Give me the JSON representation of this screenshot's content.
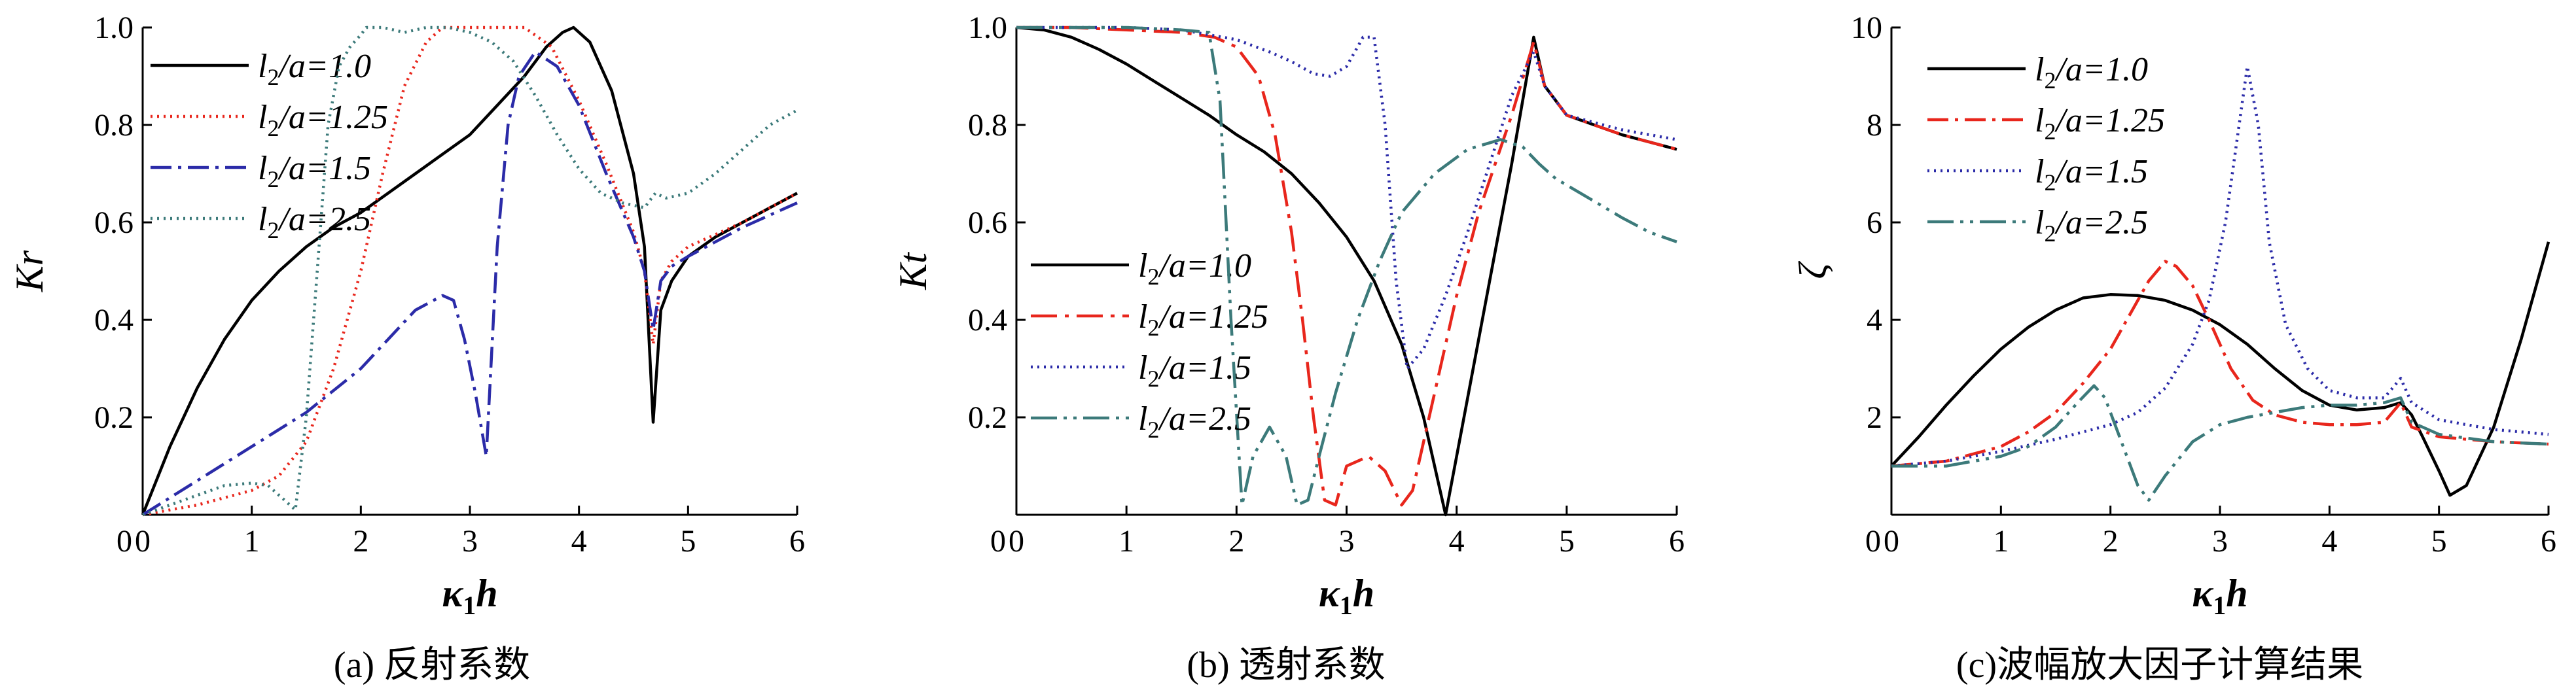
{
  "chart_data": [
    {
      "type": "line",
      "caption": "(a) 反射系数",
      "xlabel": "κ1h",
      "ylabel": "Kr",
      "xlim": [
        0,
        6
      ],
      "ylim": [
        0,
        1.0
      ],
      "xticks": [
        "0",
        "1",
        "2",
        "3",
        "4",
        "5",
        "6"
      ],
      "yticks": [
        "0.2",
        "0.4",
        "0.6",
        "0.8",
        "1.0"
      ],
      "legend": "top-left",
      "grid": false,
      "series": [
        {
          "name": "l2/a=1.0",
          "color": "#000000",
          "dash": "solid",
          "x": [
            0,
            0.25,
            0.5,
            0.75,
            1,
            1.25,
            1.5,
            1.75,
            2,
            2.25,
            2.5,
            2.75,
            3,
            3.25,
            3.5,
            3.7,
            3.85,
            3.95,
            4.1,
            4.3,
            4.5,
            4.6,
            4.68,
            4.75,
            4.85,
            5,
            5.25,
            5.5,
            5.75,
            6
          ],
          "y": [
            0,
            0.14,
            0.26,
            0.36,
            0.44,
            0.5,
            0.55,
            0.59,
            0.62,
            0.66,
            0.7,
            0.74,
            0.78,
            0.84,
            0.9,
            0.96,
            0.99,
            1.0,
            0.97,
            0.87,
            0.7,
            0.55,
            0.19,
            0.42,
            0.48,
            0.53,
            0.57,
            0.6,
            0.63,
            0.66
          ]
        },
        {
          "name": "l2/a=1.25",
          "color": "#e8261c",
          "dash": "3,7",
          "x": [
            0,
            0.5,
            1,
            1.25,
            1.5,
            1.75,
            2,
            2.2,
            2.4,
            2.6,
            2.75,
            3,
            3.25,
            3.5,
            3.75,
            4,
            4.25,
            4.5,
            4.6,
            4.68,
            4.75,
            4.85,
            5,
            5.5,
            6
          ],
          "y": [
            0,
            0.02,
            0.05,
            0.08,
            0.15,
            0.3,
            0.5,
            0.7,
            0.88,
            0.97,
            1.0,
            1.0,
            1.0,
            1.0,
            0.96,
            0.85,
            0.72,
            0.58,
            0.5,
            0.35,
            0.48,
            0.52,
            0.55,
            0.6,
            0.66
          ]
        },
        {
          "name": "l2/a=1.5",
          "color": "#2b2ba8",
          "dash": "32,10,5,10",
          "x": [
            0,
            0.5,
            1,
            1.5,
            2,
            2.25,
            2.5,
            2.75,
            2.85,
            2.95,
            3.05,
            3.15,
            3.25,
            3.35,
            3.45,
            3.6,
            3.8,
            4,
            4.25,
            4.5,
            4.6,
            4.68,
            4.75,
            4.85,
            5,
            5.5,
            6
          ],
          "y": [
            0,
            0.07,
            0.14,
            0.21,
            0.3,
            0.36,
            0.42,
            0.45,
            0.44,
            0.36,
            0.25,
            0.12,
            0.55,
            0.8,
            0.9,
            0.95,
            0.92,
            0.84,
            0.7,
            0.57,
            0.5,
            0.38,
            0.48,
            0.51,
            0.53,
            0.59,
            0.64
          ]
        },
        {
          "name": "l2/a=2.5",
          "color": "#3c7a7a",
          "dash": "3,7",
          "x": [
            0,
            0.25,
            0.5,
            0.75,
            1,
            1.15,
            1.3,
            1.4,
            1.5,
            1.6,
            1.7,
            1.8,
            1.9,
            2,
            2.05,
            2.2,
            2.4,
            2.6,
            2.8,
            3,
            3.2,
            3.4,
            3.6,
            3.8,
            4,
            4.2,
            4.4,
            4.6,
            4.7,
            4.8,
            5,
            5.25,
            5.5,
            5.75,
            6
          ],
          "y": [
            0,
            0.02,
            0.04,
            0.06,
            0.065,
            0.06,
            0.03,
            0.01,
            0.2,
            0.5,
            0.8,
            0.92,
            0.96,
            0.985,
            1.0,
            1.0,
            0.99,
            1.0,
            1.0,
            0.99,
            0.97,
            0.93,
            0.86,
            0.78,
            0.71,
            0.66,
            0.64,
            0.63,
            0.66,
            0.65,
            0.66,
            0.7,
            0.75,
            0.8,
            0.83
          ]
        }
      ]
    },
    {
      "type": "line",
      "caption": "(b) 透射系数",
      "xlabel": "κ1h",
      "ylabel": "Kt",
      "xlim": [
        0,
        6
      ],
      "ylim": [
        0,
        1.0
      ],
      "xticks": [
        "0",
        "1",
        "2",
        "3",
        "4",
        "5",
        "6"
      ],
      "yticks": [
        "0.2",
        "0.4",
        "0.6",
        "0.8",
        "1.0"
      ],
      "legend": "center-left",
      "grid": false,
      "series": [
        {
          "name": "l2/a=1.0",
          "color": "#000000",
          "dash": "solid",
          "x": [
            0,
            0.25,
            0.5,
            0.75,
            1,
            1.25,
            1.5,
            1.75,
            2,
            2.25,
            2.5,
            2.75,
            3,
            3.25,
            3.5,
            3.7,
            3.9,
            4.1,
            4.3,
            4.5,
            4.7,
            4.8,
            5,
            5.25,
            5.5,
            5.75,
            6
          ],
          "y": [
            1.0,
            0.995,
            0.98,
            0.955,
            0.925,
            0.89,
            0.855,
            0.82,
            0.78,
            0.745,
            0.7,
            0.64,
            0.57,
            0.48,
            0.35,
            0.2,
            0.0,
            0.24,
            0.48,
            0.72,
            0.98,
            0.88,
            0.82,
            0.8,
            0.78,
            0.765,
            0.75
          ]
        },
        {
          "name": "l2/a=1.25",
          "color": "#e8261c",
          "dash": "40,12,6,12",
          "x": [
            0,
            0.5,
            1,
            1.5,
            1.8,
            2,
            2.2,
            2.35,
            2.5,
            2.6,
            2.7,
            2.8,
            2.9,
            3,
            3.2,
            3.35,
            3.5,
            3.6,
            3.8,
            4,
            4.2,
            4.5,
            4.7,
            4.8,
            5,
            5.5,
            6
          ],
          "y": [
            1.0,
            1.0,
            0.995,
            0.99,
            0.98,
            0.96,
            0.9,
            0.78,
            0.58,
            0.4,
            0.2,
            0.03,
            0.02,
            0.1,
            0.12,
            0.09,
            0.02,
            0.05,
            0.25,
            0.45,
            0.62,
            0.82,
            0.97,
            0.88,
            0.82,
            0.78,
            0.75
          ]
        },
        {
          "name": "l2/a=1.5",
          "color": "#2b2ba8",
          "dash": "3,7",
          "x": [
            0,
            0.5,
            1,
            1.5,
            2,
            2.3,
            2.5,
            2.7,
            2.85,
            3,
            3.15,
            3.25,
            3.35,
            3.45,
            3.55,
            3.7,
            3.9,
            4.1,
            4.3,
            4.5,
            4.7,
            4.8,
            5,
            5.5,
            6
          ],
          "y": [
            1.0,
            1.0,
            1.0,
            0.995,
            0.975,
            0.95,
            0.93,
            0.905,
            0.9,
            0.92,
            0.98,
            0.98,
            0.8,
            0.48,
            0.3,
            0.34,
            0.45,
            0.58,
            0.72,
            0.86,
            0.95,
            0.88,
            0.82,
            0.79,
            0.77
          ]
        },
        {
          "name": "l2/a=2.5",
          "color": "#3c7a7a",
          "dash": "40,10,5,10,5,10",
          "x": [
            0,
            0.5,
            1,
            1.5,
            1.75,
            1.85,
            1.95,
            2.05,
            2.15,
            2.3,
            2.45,
            2.55,
            2.65,
            2.75,
            2.9,
            3.1,
            3.3,
            3.5,
            3.8,
            4.1,
            4.4,
            4.6,
            4.75,
            4.9,
            5.2,
            5.5,
            5.75,
            6
          ],
          "y": [
            1.0,
            1.0,
            1.0,
            0.995,
            0.99,
            0.85,
            0.4,
            0.02,
            0.12,
            0.18,
            0.12,
            0.02,
            0.03,
            0.12,
            0.25,
            0.4,
            0.52,
            0.62,
            0.7,
            0.75,
            0.77,
            0.755,
            0.72,
            0.69,
            0.65,
            0.61,
            0.58,
            0.56
          ]
        }
      ]
    },
    {
      "type": "line",
      "caption": "(c)波幅放大因子计算结果",
      "xlabel": "κ1h",
      "ylabel": "ζ",
      "xlim": [
        0,
        6
      ],
      "ylim": [
        0,
        10
      ],
      "xticks": [
        "0",
        "1",
        "2",
        "3",
        "4",
        "5",
        "6"
      ],
      "yticks": [
        "2",
        "4",
        "6",
        "8",
        "10"
      ],
      "legend": "top-left",
      "grid": false,
      "series": [
        {
          "name": "l2/a=1.0",
          "color": "#000000",
          "dash": "solid",
          "x": [
            0,
            0.25,
            0.5,
            0.75,
            1,
            1.25,
            1.5,
            1.75,
            2,
            2.25,
            2.5,
            2.75,
            3,
            3.25,
            3.5,
            3.75,
            4,
            4.25,
            4.5,
            4.65,
            4.75,
            4.85,
            5,
            5.1,
            5.25,
            5.5,
            5.75,
            6
          ],
          "y": [
            1.0,
            1.6,
            2.25,
            2.85,
            3.4,
            3.85,
            4.2,
            4.45,
            4.52,
            4.5,
            4.4,
            4.2,
            3.9,
            3.5,
            3.0,
            2.55,
            2.25,
            2.15,
            2.2,
            2.3,
            2.05,
            1.6,
            0.9,
            0.4,
            0.6,
            1.8,
            3.6,
            5.6
          ]
        },
        {
          "name": "l2/a=1.25",
          "color": "#e8261c",
          "dash": "32,10,5,10",
          "x": [
            0,
            0.5,
            1,
            1.25,
            1.5,
            1.75,
            2,
            2.2,
            2.35,
            2.5,
            2.6,
            2.75,
            2.9,
            3.1,
            3.3,
            3.5,
            3.75,
            4,
            4.25,
            4.5,
            4.65,
            4.75,
            5,
            5.5,
            6
          ],
          "y": [
            1.0,
            1.1,
            1.4,
            1.7,
            2.1,
            2.7,
            3.4,
            4.2,
            4.8,
            5.2,
            5.1,
            4.7,
            4.0,
            3.0,
            2.35,
            2.05,
            1.9,
            1.85,
            1.85,
            1.9,
            2.3,
            1.8,
            1.6,
            1.5,
            1.45
          ]
        },
        {
          "name": "l2/a=1.5",
          "color": "#2b2ba8",
          "dash": "3,7",
          "x": [
            0,
            0.5,
            1,
            1.5,
            2,
            2.25,
            2.5,
            2.75,
            2.9,
            3.05,
            3.15,
            3.25,
            3.35,
            3.45,
            3.6,
            3.8,
            4,
            4.25,
            4.5,
            4.65,
            4.75,
            5,
            5.5,
            6
          ],
          "y": [
            1.0,
            1.1,
            1.3,
            1.55,
            1.85,
            2.1,
            2.6,
            3.5,
            4.4,
            6.0,
            7.6,
            9.2,
            8.0,
            5.6,
            3.9,
            3.0,
            2.55,
            2.4,
            2.4,
            2.8,
            2.3,
            1.95,
            1.75,
            1.65
          ]
        },
        {
          "name": "l2/a=2.5",
          "color": "#3c7a7a",
          "dash": "40,10,5,10,5,10",
          "x": [
            0,
            0.5,
            1,
            1.25,
            1.5,
            1.7,
            1.85,
            1.95,
            2.1,
            2.25,
            2.35,
            2.5,
            2.75,
            3,
            3.25,
            3.5,
            3.75,
            4,
            4.25,
            4.5,
            4.65,
            4.75,
            5,
            5.5,
            6
          ],
          "y": [
            1.0,
            1.0,
            1.2,
            1.4,
            1.8,
            2.3,
            2.65,
            2.4,
            1.5,
            0.6,
            0.3,
            0.8,
            1.5,
            1.85,
            2.0,
            2.1,
            2.2,
            2.25,
            2.25,
            2.3,
            2.4,
            1.9,
            1.65,
            1.5,
            1.45
          ]
        }
      ]
    }
  ]
}
